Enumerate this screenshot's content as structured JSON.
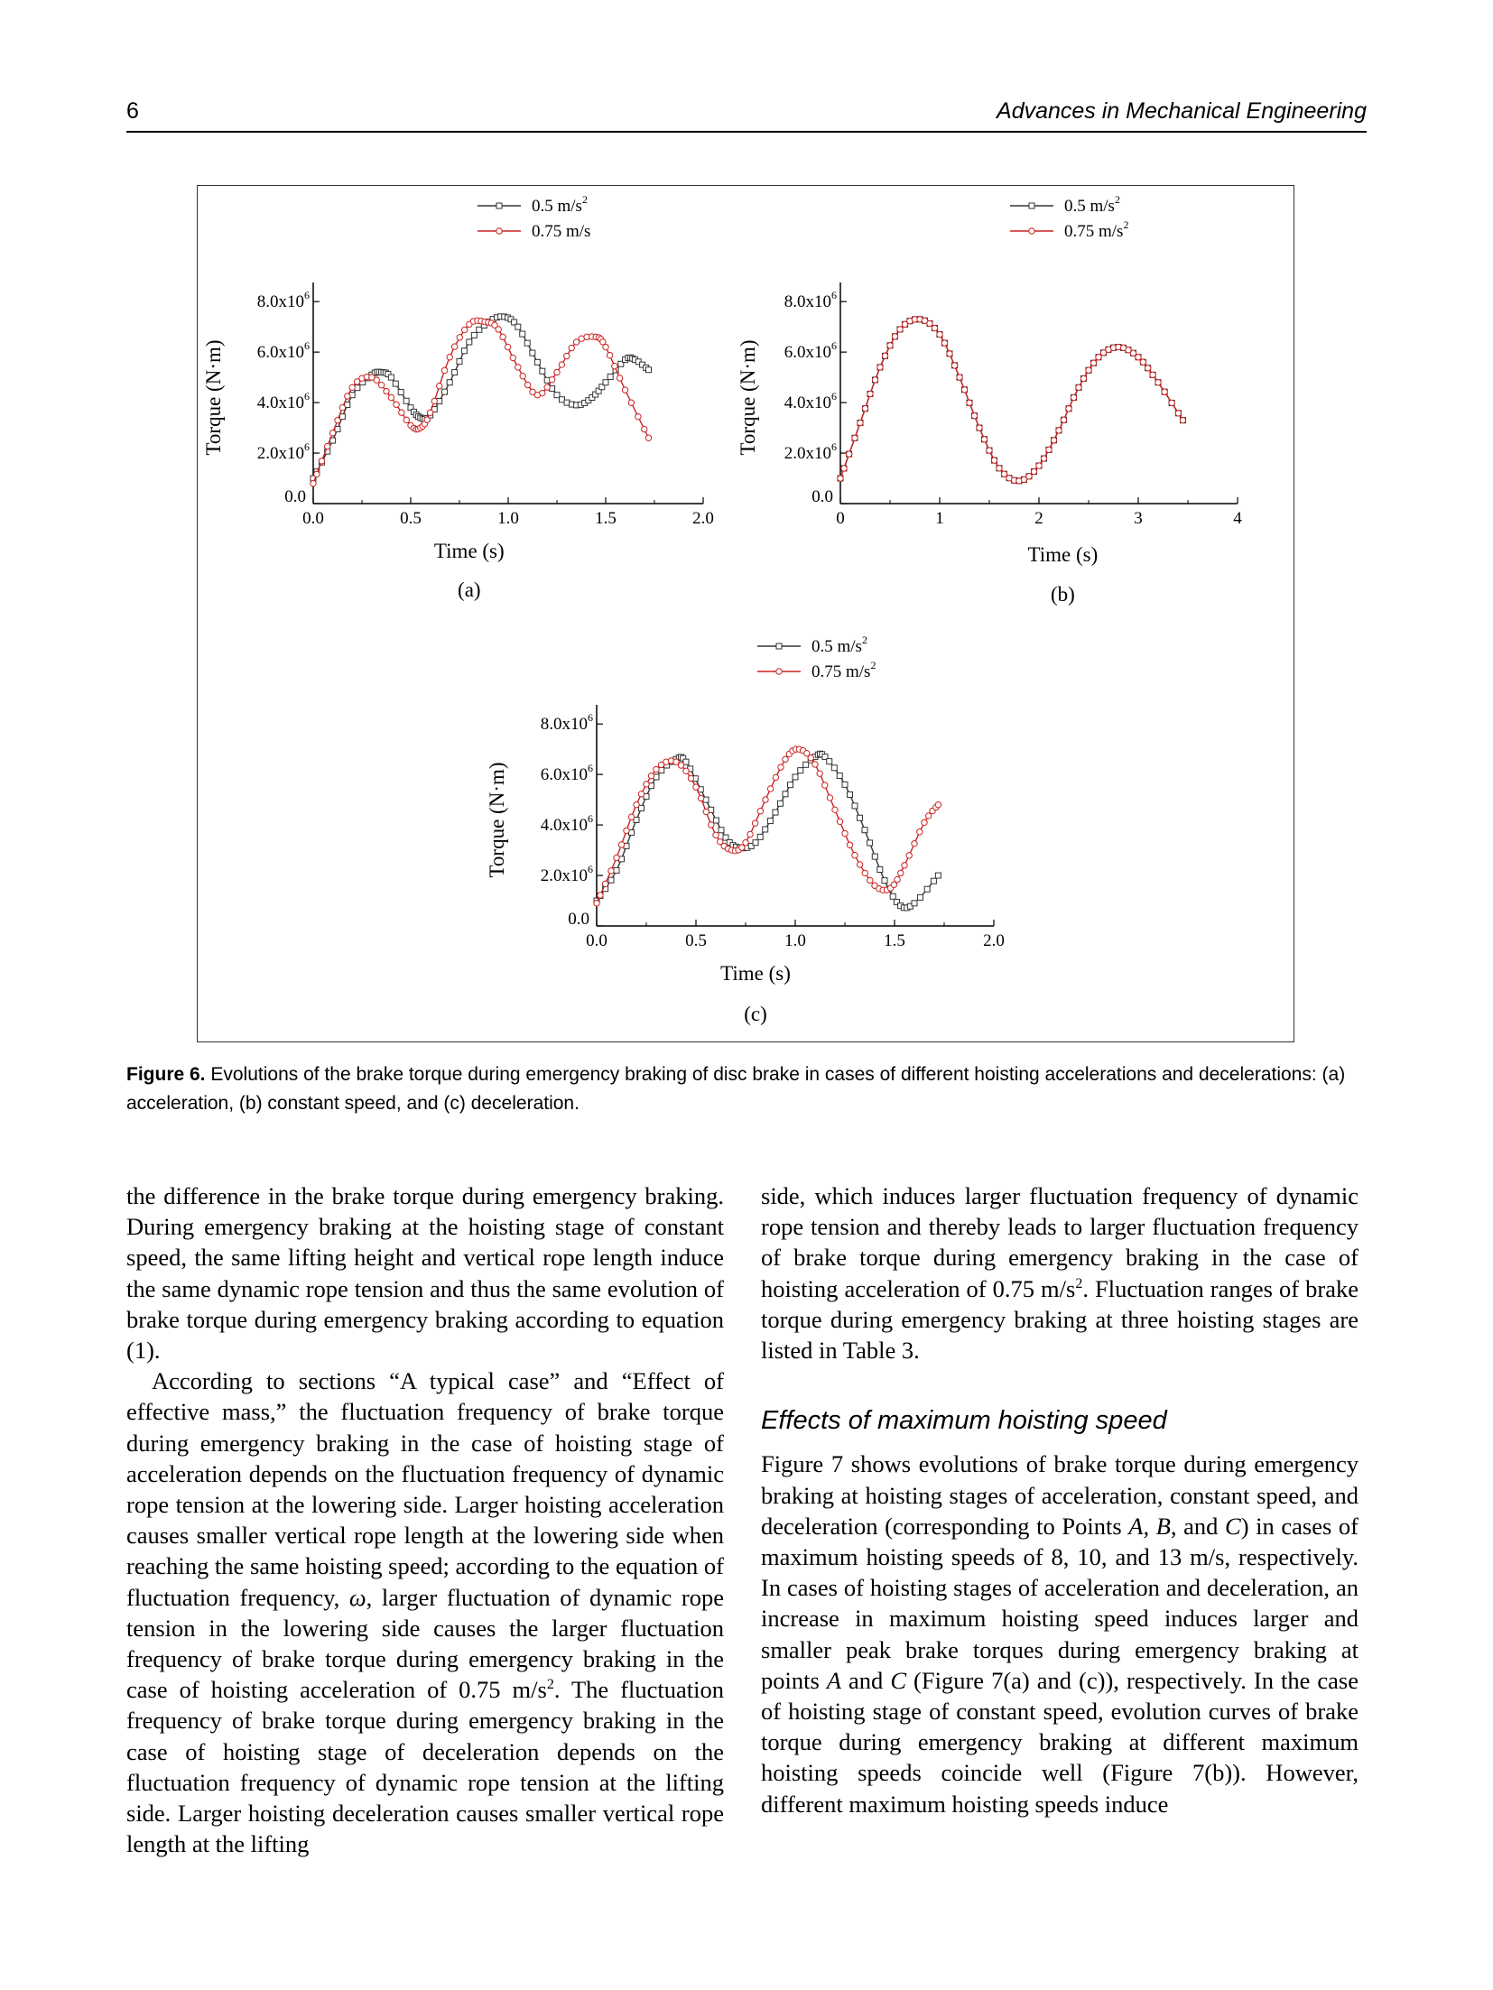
{
  "header": {
    "page_number": "6",
    "journal": "Advances in Mechanical Engineering"
  },
  "figure": {
    "caption_label": "Figure 6.",
    "caption_text": " Evolutions of the brake torque during emergency braking of disc brake in cases of different hoisting accelerations and decelerations: (a) acceleration, (b) constant speed, and (c) deceleration."
  },
  "chart_data": [
    {
      "panel": "(a)",
      "type": "line",
      "xlabel": "Time (s)",
      "ylabel": "Torque (N·m)",
      "xlim": [
        0,
        2.0
      ],
      "ylim": [
        0,
        8400000.0
      ],
      "xticks": [
        "0.0",
        "0.5",
        "1.0",
        "1.5",
        "2.0"
      ],
      "yticks": [
        "0.0",
        "2.0x10^6",
        "4.0x10^6",
        "6.0x10^6",
        "8.0x10^6"
      ],
      "legend": "top-right",
      "series": [
        {
          "name": "0.5 m/s²",
          "color": "#333333",
          "marker": "square",
          "x": [
            0,
            0.1,
            0.2,
            0.3,
            0.35,
            0.4,
            0.5,
            0.55,
            0.6,
            0.7,
            0.8,
            0.9,
            0.98,
            1.05,
            1.15,
            1.25,
            1.35,
            1.43,
            1.5,
            1.6,
            1.65,
            1.72
          ],
          "y": [
            1000000.0,
            2500000.0,
            4300000.0,
            5100000.0,
            5200000.0,
            5000000.0,
            3800000.0,
            3400000.0,
            3500000.0,
            4800000.0,
            6400000.0,
            7200000.0,
            7400000.0,
            7000000.0,
            5600000.0,
            4300000.0,
            3900000.0,
            4200000.0,
            4800000.0,
            5700000.0,
            5700000.0,
            5300000.0
          ]
        },
        {
          "name": "0.75 m/s²",
          "color": "#cc2222",
          "marker": "circle",
          "x": [
            0,
            0.1,
            0.2,
            0.3,
            0.4,
            0.5,
            0.55,
            0.6,
            0.7,
            0.8,
            0.88,
            0.95,
            1.05,
            1.15,
            1.25,
            1.35,
            1.45,
            1.5,
            1.6,
            1.72
          ],
          "y": [
            800000.0,
            2800000.0,
            4600000.0,
            5000000.0,
            4200000.0,
            3100000.0,
            3000000.0,
            3600000.0,
            5800000.0,
            7100000.0,
            7200000.0,
            6900000.0,
            5400000.0,
            4300000.0,
            5200000.0,
            6400000.0,
            6600000.0,
            6200000.0,
            4500000.0,
            2600000.0
          ]
        }
      ]
    },
    {
      "panel": "(b)",
      "type": "line",
      "xlabel": "Time (s)",
      "ylabel": "Torque (N·m)",
      "xlim": [
        0,
        4
      ],
      "ylim": [
        0,
        8400000.0
      ],
      "xticks": [
        "0",
        "1",
        "2",
        "3",
        "4"
      ],
      "yticks": [
        "0.0",
        "2.0x10^6",
        "4.0x10^6",
        "6.0x10^6",
        "8.0x10^6"
      ],
      "legend": "top-right",
      "series": [
        {
          "name": "0.5 m/s²",
          "color": "#333333",
          "marker": "square",
          "x": [
            0,
            0.2,
            0.4,
            0.6,
            0.8,
            1.0,
            1.2,
            1.4,
            1.6,
            1.8,
            2.0,
            2.2,
            2.4,
            2.6,
            2.8,
            3.0,
            3.2,
            3.45
          ],
          "y": [
            1000000.0,
            3200000.0,
            5400000.0,
            6900000.0,
            7300000.0,
            6700000.0,
            5000000.0,
            3000000.0,
            1400000.0,
            900000.0,
            1500000.0,
            2900000.0,
            4600000.0,
            5800000.0,
            6200000.0,
            5800000.0,
            4800000.0,
            3300000.0
          ]
        },
        {
          "name": "0.75 m/s²",
          "color": "#cc2222",
          "marker": "circle",
          "x": [
            0,
            0.2,
            0.4,
            0.6,
            0.8,
            1.0,
            1.2,
            1.4,
            1.6,
            1.8,
            2.0,
            2.2,
            2.4,
            2.6,
            2.8,
            3.0,
            3.2,
            3.45
          ],
          "y": [
            1000000.0,
            3200000.0,
            5400000.0,
            6900000.0,
            7300000.0,
            6700000.0,
            5000000.0,
            3000000.0,
            1400000.0,
            900000.0,
            1500000.0,
            2900000.0,
            4600000.0,
            5800000.0,
            6200000.0,
            5800000.0,
            4800000.0,
            3300000.0
          ]
        }
      ]
    },
    {
      "panel": "(c)",
      "type": "line",
      "xlabel": "Time (s)",
      "ylabel": "Torque (N·m)",
      "xlim": [
        0,
        2.0
      ],
      "ylim": [
        0,
        8400000.0
      ],
      "xticks": [
        "0.0",
        "0.5",
        "1.0",
        "1.5",
        "2.0"
      ],
      "yticks": [
        "0.0",
        "2.0x10^6",
        "4.0x10^6",
        "6.0x10^6",
        "8.0x10^6"
      ],
      "legend": "top-right",
      "series": [
        {
          "name": "0.5 m/s²",
          "color": "#333333",
          "marker": "square",
          "x": [
            0,
            0.1,
            0.2,
            0.3,
            0.4,
            0.45,
            0.55,
            0.65,
            0.72,
            0.8,
            0.9,
            1.0,
            1.1,
            1.15,
            1.25,
            1.35,
            1.45,
            1.53,
            1.6,
            1.72
          ],
          "y": [
            1000000.0,
            2200000.0,
            4200000.0,
            5900000.0,
            6600000.0,
            6500000.0,
            5000000.0,
            3500000.0,
            3100000.0,
            3300000.0,
            4500000.0,
            5900000.0,
            6700000.0,
            6700000.0,
            5600000.0,
            3800000.0,
            1800000.0,
            800000.0,
            900000.0,
            2000000.0
          ]
        },
        {
          "name": "0.75 m/s²",
          "color": "#cc2222",
          "marker": "circle",
          "x": [
            0,
            0.1,
            0.2,
            0.3,
            0.4,
            0.5,
            0.6,
            0.68,
            0.75,
            0.85,
            0.95,
            1.02,
            1.1,
            1.2,
            1.3,
            1.4,
            1.48,
            1.55,
            1.65,
            1.72
          ],
          "y": [
            900000.0,
            2700000.0,
            4800000.0,
            6200000.0,
            6500000.0,
            5500000.0,
            3600000.0,
            3000000.0,
            3300000.0,
            5000000.0,
            6600000.0,
            7000000.0,
            6400000.0,
            4600000.0,
            2800000.0,
            1600000.0,
            1500000.0,
            2400000.0,
            4100000.0,
            4800000.0
          ]
        }
      ]
    }
  ],
  "figure_axes": {
    "ytick_prefix": [
      "0.0",
      "2.0x10",
      "4.0x10",
      "6.0x10",
      "8.0x10"
    ],
    "ytick_exp": "6",
    "legend_a": [
      "0.5 m/s",
      "2",
      "0.75 m/s"
    ],
    "legend_b": [
      "0.5 m/s",
      "2",
      "0.75 m/s",
      "2"
    ],
    "legend_c": [
      "0.5 m/s",
      "2",
      "0.75 m/s",
      "2"
    ]
  },
  "body": {
    "left": {
      "p1": "the difference in the brake torque during emergency braking. During emergency braking at the hoisting stage of constant speed, the same lifting height and vertical rope length induce the same dynamic rope tension and thus the same evolution of brake torque during emergency braking according to equation (1).",
      "p2a": "According to sections “A typical case” and “Effect of effective mass,” the fluctuation frequency of brake torque during emergency braking in the case of hoisting stage of acceleration depends on the fluctuation frequency of dynamic rope tension at the lowering side. Larger hoisting acceleration causes smaller vertical rope length at the lowering side when reaching the same hoisting speed; according to the equation of fluctuation frequency, ",
      "p2_omega": "ω",
      "p2b": ", larger fluctuation of dynamic rope tension in the lowering side causes the larger fluctuation frequency of brake torque during emergency braking in the case of hoisting acceleration of 0.75 m/s",
      "p2_sup": "2",
      "p2c": ". The fluctuation frequency of brake torque during emergency braking in the case of hoisting stage of deceleration depends on the fluctuation frequency of dynamic rope tension at the lifting side. Larger hoisting deceleration causes smaller vertical rope length at the lifting"
    },
    "right": {
      "p1a": "side, which induces larger fluctuation frequency of dynamic rope tension and thereby leads to larger fluctuation frequency of brake torque during emergency braking in the case of hoisting acceleration of 0.75 m/s",
      "p1_sup": "2",
      "p1b": ". Fluctuation ranges of brake torque during emergency braking at three hoisting stages are listed in Table 3.",
      "heading": "Effects of maximum hoisting speed",
      "p2a": "Figure 7 shows evolutions of brake torque during emergency braking at hoisting stages of acceleration, constant speed, and deceleration (corresponding to Points ",
      "p2_abc": "A, B",
      "p2_and": ", and ",
      "p2_c": "C",
      "p2b": ") in cases of maximum hoisting speeds of 8, 10, and 13 m/s, respectively. In cases of hoisting stages of acceleration and deceleration, an increase in maximum hoisting speed induces larger and smaller peak brake torques during emergency braking at points ",
      "p2_A": "A",
      "p2_and2": " and ",
      "p2_C": "C",
      "p2c": " (Figure 7(a) and (c)), respectively. In the case of hoisting stage of constant speed, evolution curves of brake torque during emergency braking at different maximum hoisting speeds coincide well (Figure 7(b)). However, different maximum hoisting speeds induce"
    }
  }
}
